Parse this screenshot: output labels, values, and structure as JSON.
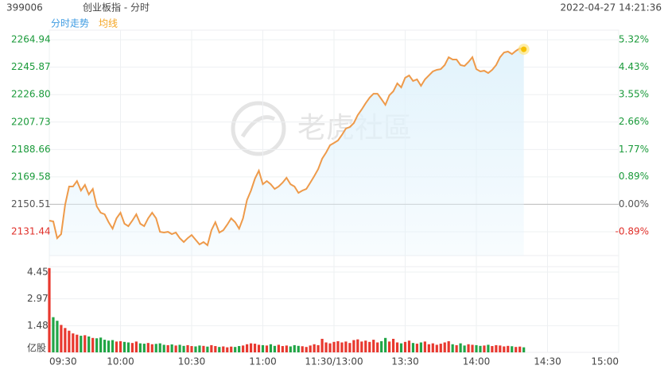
{
  "chart_data": [
    {
      "type": "line",
      "code": "399006",
      "title": "创业板指 - 分时",
      "timestamp": "2022-04-27 14:21:36",
      "legend": [
        {
          "name": "分时走势",
          "color": "#3b9ae1"
        },
        {
          "name": "均线",
          "color": "#f5a623"
        }
      ],
      "watermark": "老虎社區",
      "xticks": [
        "09:30",
        "10:00",
        "10:30",
        "11:00",
        "11:30/13:00",
        "13:30",
        "14:00",
        "14:30",
        "15:00"
      ],
      "series": [
        {
          "color": "#ee9a4a",
          "fill": "#e2f3fc",
          "values": [
            2139.2,
            2138.6,
            2127.0,
            2129.8,
            2150.2,
            2162.9,
            2162.9,
            2166.7,
            2160.1,
            2164.0,
            2157.4,
            2161.2,
            2149.1,
            2144.7,
            2143.6,
            2138.1,
            2133.6,
            2140.8,
            2144.7,
            2137.0,
            2135.3,
            2139.2,
            2143.6,
            2137.0,
            2135.3,
            2140.8,
            2144.7,
            2140.8,
            2131.4,
            2130.9,
            2131.4,
            2129.8,
            2130.9,
            2127.0,
            2124.3,
            2127.0,
            2129.2,
            2125.9,
            2122.6,
            2124.3,
            2122.1,
            2132.5,
            2138.1,
            2130.9,
            2132.5,
            2136.4,
            2140.8,
            2138.1,
            2133.6,
            2140.8,
            2153.5,
            2160.1,
            2168.4,
            2173.9,
            2164.5,
            2166.7,
            2164.5,
            2161.2,
            2162.9,
            2165.6,
            2169.0,
            2164.5,
            2162.9,
            2158.5,
            2160.1,
            2161.2,
            2165.6,
            2170.1,
            2175.0,
            2182.2,
            2186.6,
            2191.6,
            2193.2,
            2194.9,
            2198.7,
            2203.2,
            2204.3,
            2207.0,
            2212.5,
            2216.4,
            2220.8,
            2224.7,
            2227.4,
            2227.4,
            2223.6,
            2219.7,
            2226.3,
            2229.1,
            2234.6,
            2231.8,
            2238.5,
            2240.1,
            2236.3,
            2237.4,
            2232.9,
            2237.4,
            2240.1,
            2242.9,
            2244.0,
            2244.5,
            2247.3,
            2252.8,
            2251.2,
            2251.2,
            2247.3,
            2246.7,
            2249.5,
            2252.8,
            2244.5,
            2242.9,
            2243.4,
            2241.8,
            2244.0,
            2247.3,
            2252.8,
            2256.1,
            2256.7,
            2255.0,
            2257.2,
            2258.9,
            2258.3
          ]
        }
      ],
      "ylim": [
        2114.9,
        2271.6
      ],
      "yticks": [
        2264.94,
        {
          "value": 2245.87,
          "label": "2245.87"
        },
        {
          "value": 2226.8,
          "label": "2226.80"
        },
        2207.73,
        2188.66,
        2169.58,
        2150.51,
        2131.44
      ],
      "y2lim": [
        -1.66,
        5.63
      ],
      "y2ticks": [
        {
          "value": 5.32,
          "label": "5.32%"
        },
        {
          "value": 4.43,
          "label": "4.43%"
        },
        {
          "value": 3.55,
          "label": "3.55%"
        },
        {
          "value": 2.66,
          "label": "2.66%"
        },
        {
          "value": 1.77,
          "label": "1.77%"
        },
        {
          "value": 0.89,
          "label": "0.89%"
        },
        {
          "value": 0,
          "label": "0.00%"
        },
        {
          "value": -0.89,
          "label": "-0.89%"
        }
      ],
      "up_color": "#1a9a3a",
      "down_color": "#e0302a",
      "flat_color": "#555555",
      "grid": true
    },
    {
      "type": "bar",
      "y_unit": "亿股",
      "values": [
        4.67,
        1.95,
        1.75,
        1.52,
        1.35,
        1.2,
        1.05,
        0.98,
        0.92,
        0.95,
        0.88,
        0.8,
        0.78,
        0.82,
        0.7,
        0.65,
        0.68,
        0.6,
        0.62,
        0.58,
        0.55,
        0.52,
        0.6,
        0.5,
        0.48,
        0.52,
        0.45,
        0.47,
        0.5,
        0.42,
        0.4,
        0.44,
        0.38,
        0.42,
        0.36,
        0.4,
        0.35,
        0.33,
        0.38,
        0.36,
        0.32,
        0.4,
        0.35,
        0.3,
        0.33,
        0.28,
        0.32,
        0.3,
        0.35,
        0.38,
        0.45,
        0.5,
        0.48,
        0.42,
        0.4,
        0.38,
        0.45,
        0.36,
        0.42,
        0.35,
        0.38,
        0.33,
        0.4,
        0.36,
        0.34,
        0.3,
        0.38,
        0.45,
        0.4,
        0.75,
        0.55,
        0.5,
        0.58,
        0.62,
        0.55,
        0.6,
        0.52,
        0.68,
        0.72,
        0.6,
        0.65,
        0.58,
        0.7,
        0.55,
        0.62,
        0.8,
        0.6,
        0.75,
        0.55,
        0.5,
        0.58,
        0.65,
        0.52,
        0.48,
        0.55,
        0.6,
        0.45,
        0.5,
        0.42,
        0.48,
        0.55,
        0.62,
        0.45,
        0.4,
        0.5,
        0.38,
        0.45,
        0.42,
        0.4,
        0.36,
        0.38,
        0.42,
        0.35,
        0.4,
        0.38,
        0.33,
        0.36,
        0.34,
        0.3,
        0.32,
        0.28
      ],
      "rise_color": "#e8382e",
      "fall_color": "#22a546",
      "ylim": [
        0,
        4.75
      ],
      "yticks": [
        4.45,
        2.97,
        1.48
      ]
    }
  ]
}
